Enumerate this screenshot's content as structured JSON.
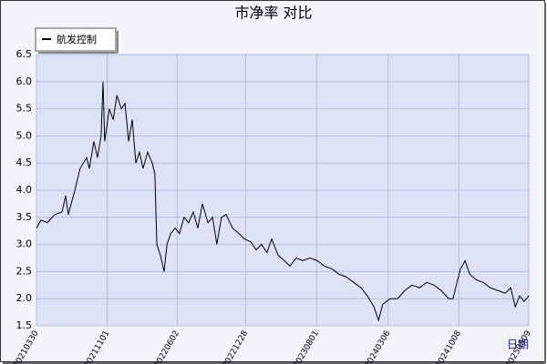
{
  "chart_data": {
    "type": "line",
    "title": "市净率  对比",
    "x_label": "日期",
    "legend": "upper left",
    "grid": true,
    "x": [
      "20210330",
      "20210413",
      "20210502",
      "20210525",
      "20210616",
      "20210627",
      "20210705",
      "20210725",
      "20210810",
      "20210830",
      "20210907",
      "20210921",
      "20211002",
      "20211013",
      "20211019",
      "20211024",
      "20211107",
      "20211119",
      "20211130",
      "20211214",
      "20211225",
      "20220105",
      "20220116",
      "20220127",
      "20220207",
      "20220218",
      "20220304",
      "20220318",
      "20220326",
      "20220401",
      "20220412",
      "20220423",
      "20220502",
      "20220513",
      "20220527",
      "20220609",
      "20220623",
      "20220707",
      "20220721",
      "20220804",
      "20220818",
      "20220904",
      "20220918",
      "20221001",
      "20221015",
      "20221029",
      "20221118",
      "20221207",
      "20221224",
      "20230112",
      "20230129",
      "20230214",
      "20230303",
      "20230317",
      "20230406",
      "20230425",
      "20230512",
      "20230531",
      "20230620",
      "20230712",
      "20230803",
      "20230825",
      "20230917",
      "20231009",
      "20231031",
      "20231122",
      "20231215",
      "20240103",
      "20240123",
      "20240206",
      "20240219",
      "20240313",
      "20240404",
      "20240426",
      "20240518",
      "20240610",
      "20240702",
      "20240724",
      "20240815",
      "20240907",
      "20240920",
      "20241002",
      "20241013",
      "20241027",
      "20241110",
      "20241129",
      "20241221",
      "20250112",
      "20250204",
      "20250226",
      "20250315",
      "20250329",
      "20250411",
      "20250425",
      "20250509"
    ],
    "series": [
      {
        "name": "航发控制",
        "color": "#000000",
        "values": [
          3.3,
          3.45,
          3.4,
          3.55,
          3.6,
          3.9,
          3.55,
          4.0,
          4.4,
          4.6,
          4.4,
          4.9,
          4.6,
          5.0,
          6.0,
          4.9,
          5.5,
          5.3,
          5.75,
          5.5,
          5.6,
          4.9,
          5.3,
          4.5,
          4.7,
          4.4,
          4.7,
          4.5,
          4.3,
          3.0,
          2.8,
          2.5,
          3.0,
          3.2,
          3.3,
          3.2,
          3.5,
          3.4,
          3.6,
          3.3,
          3.75,
          3.4,
          3.5,
          3.0,
          3.5,
          3.55,
          3.3,
          3.2,
          3.1,
          3.05,
          2.9,
          3.0,
          2.85,
          3.1,
          2.8,
          2.7,
          2.6,
          2.75,
          2.7,
          2.75,
          2.7,
          2.6,
          2.55,
          2.45,
          2.4,
          2.3,
          2.2,
          2.05,
          1.85,
          1.6,
          1.9,
          2.0,
          2.0,
          2.15,
          2.25,
          2.2,
          2.3,
          2.25,
          2.15,
          2.0,
          2.0,
          2.3,
          2.55,
          2.7,
          2.45,
          2.35,
          2.3,
          2.2,
          2.15,
          2.1,
          2.2,
          1.85,
          2.05,
          1.95,
          2.05
        ]
      }
    ],
    "xlim": [
      "20210330",
      "20250509"
    ],
    "xticks": [
      "20210330",
      "20211101",
      "20220602",
      "20221228",
      "20230801",
      "20240306",
      "20241008",
      "20250509"
    ],
    "ylim": [
      1.5,
      6.5
    ],
    "yticks": [
      1.5,
      {
        "value": 2,
        "label": "2.0"
      },
      2.5,
      {
        "value": 3,
        "label": "3.0"
      },
      3.5,
      {
        "value": 4,
        "label": "4.0"
      },
      4.5,
      {
        "value": 5,
        "label": "5.0"
      },
      5.5,
      {
        "value": 6,
        "label": "6.0"
      },
      6.5
    ]
  }
}
